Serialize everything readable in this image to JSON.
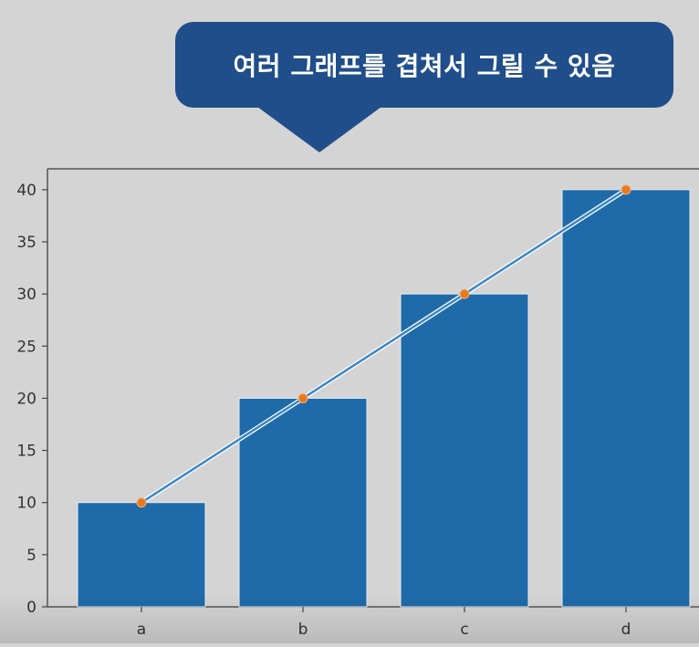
{
  "callout": {
    "text": "여러 그래프를 겹쳐서 그릴 수 있음"
  },
  "colors": {
    "bar": "#1f6aa8",
    "line": "#3b86c6",
    "marker": "#e8791e",
    "callout_bg": "#1f4e8a"
  },
  "chart_data": {
    "type": "bar",
    "categories": [
      "a",
      "b",
      "c",
      "d"
    ],
    "series": [
      {
        "type": "bar",
        "values": [
          10,
          20,
          30,
          40
        ]
      },
      {
        "type": "line",
        "values": [
          10,
          20,
          30,
          40
        ],
        "marker": "o"
      }
    ],
    "title": "",
    "xlabel": "",
    "ylabel": "",
    "ylim": [
      0,
      42
    ],
    "yticks": [
      0,
      5,
      10,
      15,
      20,
      25,
      30,
      35,
      40
    ],
    "grid": false
  }
}
